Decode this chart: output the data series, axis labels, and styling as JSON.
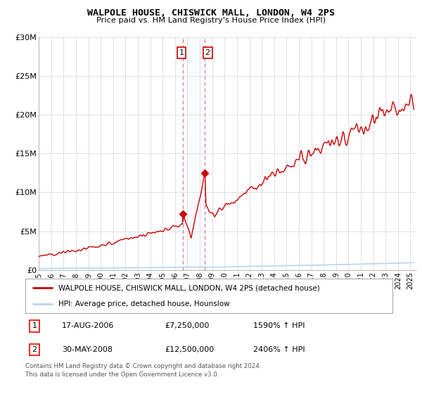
{
  "title": "WALPOLE HOUSE, CHISWICK MALL, LONDON, W4 2PS",
  "subtitle": "Price paid vs. HM Land Registry's House Price Index (HPI)",
  "ylabel_ticks": [
    "£0",
    "£5M",
    "£10M",
    "£15M",
    "£20M",
    "£25M",
    "£30M"
  ],
  "ylabel_values": [
    0,
    5000000,
    10000000,
    15000000,
    20000000,
    25000000,
    30000000
  ],
  "ylim": [
    0,
    30000000
  ],
  "xlim_start": 1995.0,
  "xlim_end": 2025.5,
  "xtick_years": [
    1995,
    1996,
    1997,
    1998,
    1999,
    2000,
    2001,
    2002,
    2003,
    2004,
    2005,
    2006,
    2007,
    2008,
    2009,
    2010,
    2011,
    2012,
    2013,
    2014,
    2015,
    2016,
    2017,
    2018,
    2019,
    2020,
    2021,
    2022,
    2023,
    2024,
    2025
  ],
  "hpi_color": "#b8d4ea",
  "price_color": "#cc0000",
  "sale1_x": 2006.63,
  "sale1_y": 7250000,
  "sale2_x": 2008.41,
  "sale2_y": 12500000,
  "vline1_x": 2006.63,
  "vline2_x": 2008.41,
  "legend_line1": "WALPOLE HOUSE, CHISWICK MALL, LONDON, W4 2PS (detached house)",
  "legend_line2": "HPI: Average price, detached house, Hounslow",
  "annotation1_num": "1",
  "annotation1_date": "17-AUG-2006",
  "annotation1_price": "£7,250,000",
  "annotation1_hpi": "1590% ↑ HPI",
  "annotation2_num": "2",
  "annotation2_date": "30-MAY-2008",
  "annotation2_price": "£12,500,000",
  "annotation2_hpi": "2406% ↑ HPI",
  "footnote": "Contains HM Land Registry data © Crown copyright and database right 2024.\nThis data is licensed under the Open Government Licence v3.0.",
  "background_color": "#ffffff",
  "grid_color": "#e0e0e0"
}
